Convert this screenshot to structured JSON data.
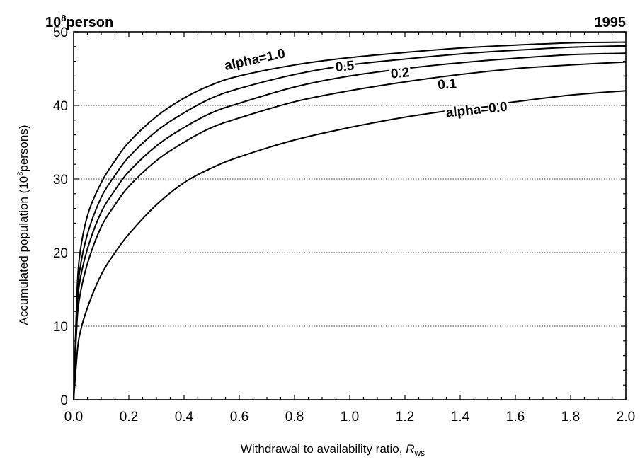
{
  "chart_data": {
    "type": "line",
    "title_left_base": "10",
    "title_left_sup": "8",
    "title_left_rest": "person",
    "title_right": "1995",
    "xlabel_main": "Withdrawal to availability ratio, ",
    "xlabel_symbol": "R",
    "xlabel_sub": "ws",
    "ylabel_main": "Accumulated population (10",
    "ylabel_sup": "8",
    "ylabel_end": "persons)",
    "xlim": [
      0,
      2
    ],
    "ylim": [
      0,
      50
    ],
    "xticks": [
      "0.0",
      "0.2",
      "0.4",
      "0.6",
      "0.8",
      "1.0",
      "1.2",
      "1.4",
      "1.6",
      "1.8",
      "2.0"
    ],
    "xtick_values": [
      0,
      0.2,
      0.4,
      0.6,
      0.8,
      1.0,
      1.2,
      1.4,
      1.6,
      1.8,
      2.0
    ],
    "yticks": [
      "0",
      "10",
      "20",
      "30",
      "40",
      "50"
    ],
    "ytick_values": [
      0,
      10,
      20,
      30,
      40,
      50
    ],
    "grid": "horizontal dotted",
    "series": [
      {
        "name": "alpha=1.0",
        "label": "alpha=1.0",
        "x": [
          0,
          0.01,
          0.02,
          0.05,
          0.1,
          0.15,
          0.2,
          0.3,
          0.4,
          0.5,
          0.6,
          0.8,
          1.0,
          1.2,
          1.4,
          1.6,
          1.8,
          2.0
        ],
        "y": [
          0,
          12,
          19,
          25,
          29.5,
          32.5,
          35,
          38.5,
          41,
          42.8,
          44,
          45.5,
          46.5,
          47.2,
          47.8,
          48.2,
          48.5,
          48.6
        ]
      },
      {
        "name": "0.5",
        "label": "0.5",
        "x": [
          0,
          0.01,
          0.02,
          0.05,
          0.1,
          0.15,
          0.2,
          0.3,
          0.4,
          0.5,
          0.6,
          0.8,
          1.0,
          1.2,
          1.4,
          1.6,
          1.8,
          2.0
        ],
        "y": [
          0,
          11,
          17,
          22.5,
          27.5,
          30.5,
          33,
          36.5,
          39,
          41,
          42.3,
          44.2,
          45.5,
          46.3,
          47,
          47.5,
          47.9,
          48.1
        ]
      },
      {
        "name": "0.2",
        "label": "0.2",
        "x": [
          0,
          0.01,
          0.02,
          0.05,
          0.1,
          0.15,
          0.2,
          0.3,
          0.4,
          0.5,
          0.6,
          0.8,
          1.0,
          1.2,
          1.4,
          1.6,
          1.8,
          2.0
        ],
        "y": [
          0,
          10,
          15.5,
          20.5,
          25.5,
          28.5,
          31,
          34.5,
          37,
          39,
          40.3,
          42.5,
          44,
          45,
          45.8,
          46.4,
          46.9,
          47.1
        ]
      },
      {
        "name": "0.1",
        "label": "0.1",
        "x": [
          0,
          0.01,
          0.02,
          0.05,
          0.1,
          0.15,
          0.2,
          0.3,
          0.4,
          0.5,
          0.6,
          0.8,
          1.0,
          1.2,
          1.4,
          1.6,
          1.8,
          2.0
        ],
        "y": [
          0,
          9,
          13.5,
          18.5,
          23.5,
          26.5,
          29,
          32.5,
          35,
          37,
          38.3,
          40.5,
          42,
          43.2,
          44.2,
          45,
          45.5,
          45.9
        ]
      },
      {
        "name": "alpha=0.0",
        "label": "alpha=0.0",
        "x": [
          0,
          0.01,
          0.02,
          0.05,
          0.1,
          0.15,
          0.2,
          0.3,
          0.4,
          0.5,
          0.6,
          0.8,
          1.0,
          1.2,
          1.4,
          1.6,
          1.8,
          2.0
        ],
        "y": [
          0,
          5,
          8.5,
          12.5,
          17,
          20,
          22.5,
          26.5,
          29.5,
          31.5,
          33,
          35.3,
          37,
          38.4,
          39.5,
          40.5,
          41.4,
          42
        ]
      }
    ]
  }
}
